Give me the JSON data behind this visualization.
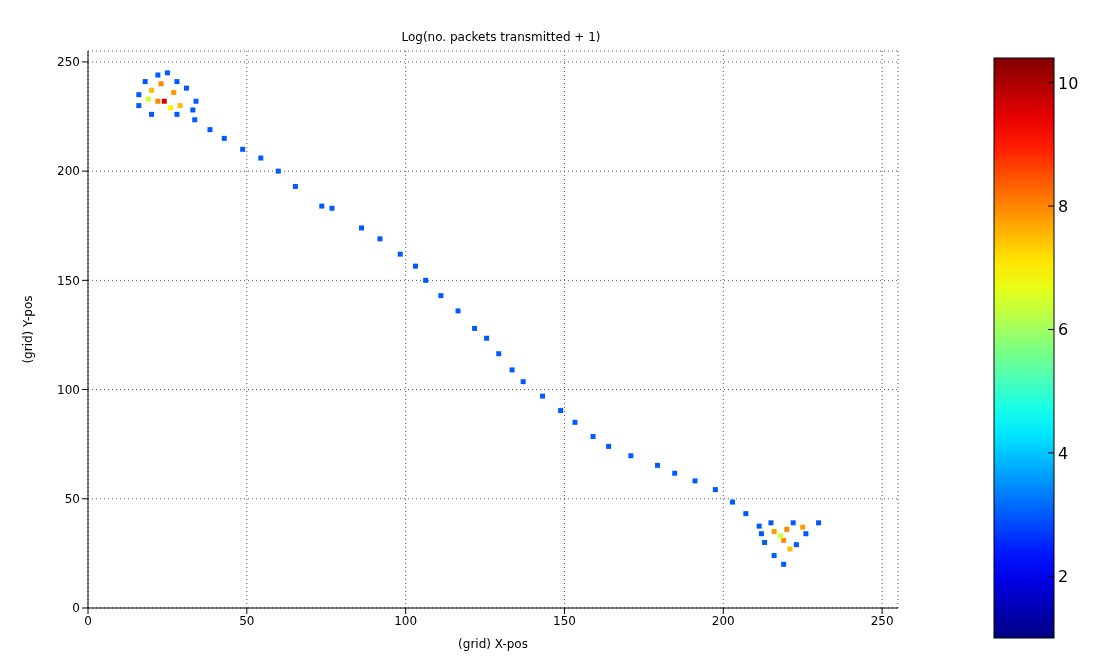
{
  "chart_data": {
    "type": "scatter",
    "title": "Log(no. packets transmitted + 1)",
    "xlabel": "(grid) X-pos",
    "ylabel": "(grid) Y-pos",
    "x": [
      33.6,
      38.4,
      42.9,
      48.7,
      54.4,
      59.9,
      65.3,
      73.6,
      76.8,
      86.1,
      91.9,
      98.3,
      103.1,
      106.3,
      111.1,
      116.5,
      121.7,
      125.5,
      129.3,
      133.5,
      137,
      143.1,
      148.8,
      153.3,
      159,
      163.9,
      170.9,
      179.3,
      184.7,
      191.1,
      197.5,
      202.9,
      207.1,
      211.3,
      16,
      18,
      22,
      25,
      28,
      31,
      34,
      33,
      28,
      20,
      16,
      20,
      23,
      27,
      22,
      24,
      29,
      19,
      26,
      212,
      215,
      222,
      230,
      226,
      223,
      219,
      216,
      213,
      216,
      220,
      225,
      219,
      221,
      218
    ],
    "values": [
      223.5,
      219,
      215,
      210,
      206,
      200,
      193,
      184,
      183,
      174,
      169,
      162,
      156.5,
      150,
      143,
      136,
      128,
      123.5,
      116.4,
      109,
      103.6,
      97,
      90.4,
      85,
      78.5,
      74,
      69.7,
      65.3,
      61.7,
      58.2,
      54.2,
      48.5,
      43.2,
      37.5,
      235,
      241,
      244,
      245,
      241,
      238,
      232,
      228,
      226,
      226,
      230,
      237,
      240,
      236,
      232,
      232,
      230,
      233,
      229,
      34,
      39,
      39,
      39,
      34,
      29,
      20,
      24,
      30,
      35,
      36,
      37,
      31,
      27,
      33
    ],
    "cvalues": [
      3,
      3,
      3,
      3,
      3,
      3,
      3,
      3,
      3,
      3,
      3,
      3,
      3,
      3,
      3,
      3,
      3,
      3,
      3,
      3,
      3,
      3,
      3,
      3,
      3,
      3,
      3,
      3,
      3,
      3,
      3,
      3,
      3,
      3,
      3,
      3,
      3,
      3,
      3,
      3,
      3,
      3,
      3,
      3,
      3,
      7.5,
      8,
      7.8,
      8,
      9.5,
      7.5,
      6.5,
      7,
      3,
      3,
      3,
      3,
      3,
      3,
      3,
      3,
      3,
      7.8,
      8,
      7.8,
      8,
      7.5,
      6.5
    ],
    "xlim": [
      0,
      255
    ],
    "ylim": [
      0,
      255
    ],
    "xticks": [
      0,
      50,
      100,
      150,
      200,
      250
    ],
    "yticks": [
      0,
      50,
      100,
      150,
      200,
      250
    ],
    "clim": [
      1,
      10.4
    ],
    "cticks": [
      2,
      4,
      6,
      8,
      10
    ],
    "grid": true,
    "marker": "square"
  }
}
